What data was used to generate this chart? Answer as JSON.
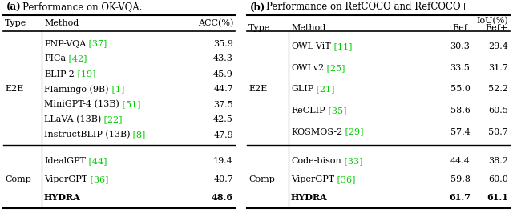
{
  "table_a": {
    "title_bold": "(a)",
    "title_normal": " Performance on OK-VQA.",
    "e2e_rows": [
      {
        "method": "PNP-VQA",
        "ref": "37",
        "acc": "35.9",
        "bold": false
      },
      {
        "method": "PICa",
        "ref": "42",
        "acc": "43.3",
        "bold": false
      },
      {
        "method": "BLIP-2",
        "ref": "19",
        "acc": "45.9",
        "bold": false
      },
      {
        "method": "Flamingo (9B)",
        "ref": "1",
        "acc": "44.7",
        "bold": false
      },
      {
        "method": "MiniGPT-4 (13B)",
        "ref": "51",
        "acc": "37.5",
        "bold": false
      },
      {
        "method": "LLaVA (13B)",
        "ref": "22",
        "acc": "42.5",
        "bold": false
      },
      {
        "method": "InstructBLIP (13B)",
        "ref": "8",
        "acc": "47.9",
        "bold": false
      }
    ],
    "comp_rows": [
      {
        "method": "IdealGPT",
        "ref": "44",
        "acc": "19.4",
        "bold": false
      },
      {
        "method": "ViperGPT",
        "ref": "36",
        "acc": "40.7",
        "bold": false
      },
      {
        "method": "HYDRA",
        "ref": "",
        "acc": "48.6",
        "bold": true
      }
    ]
  },
  "table_b": {
    "title_bold": "(b)",
    "title_normal": " Performance on RefCOCO and RefCOCO+",
    "iou_label": "IoU(%)",
    "e2e_rows": [
      {
        "method": "OWL-ViT",
        "ref": "11",
        "val_ref": "30.3",
        "val_refp": "29.4",
        "bold": false
      },
      {
        "method": "OWLv2",
        "ref": "25",
        "val_ref": "33.5",
        "val_refp": "31.7",
        "bold": false
      },
      {
        "method": "GLIP",
        "ref": "21",
        "val_ref": "55.0",
        "val_refp": "52.2",
        "bold": false
      },
      {
        "method": "ReCLIP",
        "ref": "35",
        "val_ref": "58.6",
        "val_refp": "60.5",
        "bold": false
      },
      {
        "method": "KOSMOS-2",
        "ref": "29",
        "val_ref": "57.4",
        "val_refp": "50.7",
        "bold": false
      }
    ],
    "comp_rows": [
      {
        "method": "Code-bison",
        "ref": "33",
        "val_ref": "44.4",
        "val_refp": "38.2",
        "bold": false
      },
      {
        "method": "ViperGPT",
        "ref": "36",
        "val_ref": "59.8",
        "val_refp": "60.0",
        "bold": false
      },
      {
        "method": "HYDRA",
        "ref": "",
        "val_ref": "61.7",
        "val_refp": "61.1",
        "bold": true
      }
    ]
  },
  "green_color": "#00CC00",
  "black_color": "#000000",
  "bg_color": "#FFFFFF",
  "fontsize": 8.0,
  "title_fontsize": 8.5
}
